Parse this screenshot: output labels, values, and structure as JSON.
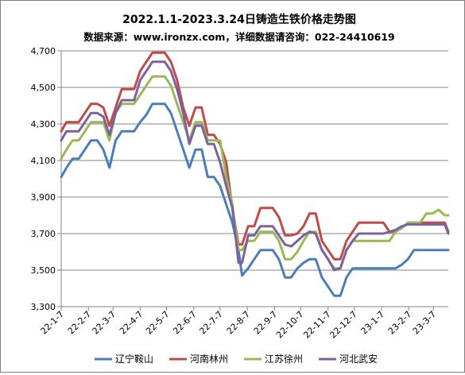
{
  "chart_data": {
    "type": "line",
    "title": "2022.1.1-2023.3.24日铸造生铁价格走势图",
    "subtitle": "数据来源：www.ironzx.com，详细数据请咨询：022-24410619",
    "xlabel": "",
    "ylabel": "",
    "ylim": [
      3300,
      4700
    ],
    "yticks": [
      3300,
      3500,
      3700,
      3900,
      4100,
      4300,
      4500,
      4700
    ],
    "ytick_labels": [
      "3,300",
      "3,500",
      "3,700",
      "3,900",
      "4,100",
      "4,300",
      "4,500",
      "4,700"
    ],
    "xlim": [
      "2022-01-07",
      "2023-03-24"
    ],
    "xtick_dates": [
      "2022-01-07",
      "2022-02-07",
      "2022-03-07",
      "2022-04-07",
      "2022-05-07",
      "2022-06-07",
      "2022-07-07",
      "2022-08-07",
      "2022-09-07",
      "2022-10-07",
      "2022-11-07",
      "2022-12-07",
      "2023-01-07",
      "2023-02-07",
      "2023-03-07"
    ],
    "xtick_labels": [
      "22-1-7",
      "22-2-7",
      "22-3-7",
      "22-4-7",
      "22-5-7",
      "22-6-7",
      "22-7-7",
      "22-8-7",
      "22-9-7",
      "22-10-7",
      "22-11-7",
      "22-12-7",
      "23-1-7",
      "23-2-7",
      "23-3-7"
    ],
    "grid": true,
    "legend_position": "bottom",
    "series": [
      {
        "name": "辽宁鞍山",
        "color": "#4a7ebb",
        "points": [
          [
            "2022-01-07",
            4010
          ],
          [
            "2022-01-13",
            4060
          ],
          [
            "2022-01-20",
            4110
          ],
          [
            "2022-01-27",
            4110
          ],
          [
            "2022-02-03",
            4160
          ],
          [
            "2022-02-10",
            4210
          ],
          [
            "2022-02-17",
            4210
          ],
          [
            "2022-02-24",
            4160
          ],
          [
            "2022-03-03",
            4060
          ],
          [
            "2022-03-10",
            4210
          ],
          [
            "2022-03-17",
            4260
          ],
          [
            "2022-03-24",
            4260
          ],
          [
            "2022-03-31",
            4260
          ],
          [
            "2022-04-07",
            4310
          ],
          [
            "2022-04-14",
            4350
          ],
          [
            "2022-04-21",
            4410
          ],
          [
            "2022-04-28",
            4410
          ],
          [
            "2022-05-05",
            4410
          ],
          [
            "2022-05-12",
            4360
          ],
          [
            "2022-05-19",
            4260
          ],
          [
            "2022-05-26",
            4160
          ],
          [
            "2022-06-02",
            4060
          ],
          [
            "2022-06-09",
            4160
          ],
          [
            "2022-06-16",
            4160
          ],
          [
            "2022-06-23",
            4010
          ],
          [
            "2022-06-30",
            4010
          ],
          [
            "2022-07-07",
            3960
          ],
          [
            "2022-07-14",
            3860
          ],
          [
            "2022-07-21",
            3760
          ],
          [
            "2022-07-28",
            3610
          ],
          [
            "2022-08-01",
            3470
          ],
          [
            "2022-08-08",
            3510
          ],
          [
            "2022-08-15",
            3560
          ],
          [
            "2022-08-22",
            3610
          ],
          [
            "2022-08-29",
            3610
          ],
          [
            "2022-09-05",
            3610
          ],
          [
            "2022-09-12",
            3560
          ],
          [
            "2022-09-19",
            3460
          ],
          [
            "2022-09-26",
            3460
          ],
          [
            "2022-10-03",
            3510
          ],
          [
            "2022-10-10",
            3540
          ],
          [
            "2022-10-17",
            3560
          ],
          [
            "2022-10-24",
            3560
          ],
          [
            "2022-10-31",
            3460
          ],
          [
            "2022-11-07",
            3410
          ],
          [
            "2022-11-14",
            3360
          ],
          [
            "2022-11-21",
            3360
          ],
          [
            "2022-11-28",
            3460
          ],
          [
            "2022-12-05",
            3510
          ],
          [
            "2022-12-12",
            3510
          ],
          [
            "2022-12-19",
            3510
          ],
          [
            "2022-12-26",
            3510
          ],
          [
            "2023-01-02",
            3510
          ],
          [
            "2023-01-09",
            3510
          ],
          [
            "2023-01-16",
            3510
          ],
          [
            "2023-01-23",
            3510
          ],
          [
            "2023-01-30",
            3530
          ],
          [
            "2023-02-06",
            3560
          ],
          [
            "2023-02-13",
            3610
          ],
          [
            "2023-02-20",
            3610
          ],
          [
            "2023-02-27",
            3610
          ],
          [
            "2023-03-06",
            3610
          ],
          [
            "2023-03-13",
            3610
          ],
          [
            "2023-03-20",
            3610
          ],
          [
            "2023-03-24",
            3610
          ]
        ]
      },
      {
        "name": "河南林州",
        "color": "#be4b48",
        "points": [
          [
            "2022-01-07",
            4260
          ],
          [
            "2022-01-13",
            4310
          ],
          [
            "2022-01-20",
            4310
          ],
          [
            "2022-01-27",
            4310
          ],
          [
            "2022-02-03",
            4360
          ],
          [
            "2022-02-10",
            4410
          ],
          [
            "2022-02-17",
            4410
          ],
          [
            "2022-02-24",
            4390
          ],
          [
            "2022-03-03",
            4290
          ],
          [
            "2022-03-10",
            4390
          ],
          [
            "2022-03-17",
            4490
          ],
          [
            "2022-03-24",
            4490
          ],
          [
            "2022-03-31",
            4490
          ],
          [
            "2022-04-07",
            4590
          ],
          [
            "2022-04-14",
            4640
          ],
          [
            "2022-04-21",
            4690
          ],
          [
            "2022-04-28",
            4690
          ],
          [
            "2022-05-05",
            4690
          ],
          [
            "2022-05-12",
            4640
          ],
          [
            "2022-05-19",
            4540
          ],
          [
            "2022-05-26",
            4390
          ],
          [
            "2022-06-02",
            4290
          ],
          [
            "2022-06-09",
            4390
          ],
          [
            "2022-06-16",
            4390
          ],
          [
            "2022-06-23",
            4240
          ],
          [
            "2022-06-30",
            4240
          ],
          [
            "2022-07-07",
            4190
          ],
          [
            "2022-07-14",
            4090
          ],
          [
            "2022-07-21",
            3840
          ],
          [
            "2022-07-28",
            3640
          ],
          [
            "2022-08-01",
            3640
          ],
          [
            "2022-08-08",
            3740
          ],
          [
            "2022-08-15",
            3740
          ],
          [
            "2022-08-22",
            3840
          ],
          [
            "2022-08-29",
            3840
          ],
          [
            "2022-09-05",
            3840
          ],
          [
            "2022-09-12",
            3790
          ],
          [
            "2022-09-19",
            3690
          ],
          [
            "2022-09-26",
            3690
          ],
          [
            "2022-10-03",
            3700
          ],
          [
            "2022-10-10",
            3740
          ],
          [
            "2022-10-17",
            3810
          ],
          [
            "2022-10-24",
            3810
          ],
          [
            "2022-10-31",
            3660
          ],
          [
            "2022-11-07",
            3610
          ],
          [
            "2022-11-14",
            3560
          ],
          [
            "2022-11-21",
            3560
          ],
          [
            "2022-11-28",
            3660
          ],
          [
            "2022-12-05",
            3710
          ],
          [
            "2022-12-12",
            3760
          ],
          [
            "2022-12-19",
            3760
          ],
          [
            "2022-12-26",
            3760
          ],
          [
            "2023-01-02",
            3760
          ],
          [
            "2023-01-09",
            3760
          ],
          [
            "2023-01-16",
            3710
          ],
          [
            "2023-01-23",
            3710
          ],
          [
            "2023-01-30",
            3730
          ],
          [
            "2023-02-06",
            3760
          ],
          [
            "2023-02-13",
            3760
          ],
          [
            "2023-02-20",
            3760
          ],
          [
            "2023-02-27",
            3760
          ],
          [
            "2023-03-06",
            3760
          ],
          [
            "2023-03-13",
            3760
          ],
          [
            "2023-03-20",
            3760
          ],
          [
            "2023-03-24",
            3710
          ]
        ]
      },
      {
        "name": "江苏徐州",
        "color": "#98b954",
        "points": [
          [
            "2022-01-07",
            4110
          ],
          [
            "2022-01-13",
            4160
          ],
          [
            "2022-01-20",
            4210
          ],
          [
            "2022-01-27",
            4210
          ],
          [
            "2022-02-03",
            4260
          ],
          [
            "2022-02-10",
            4310
          ],
          [
            "2022-02-17",
            4310
          ],
          [
            "2022-02-24",
            4310
          ],
          [
            "2022-03-03",
            4210
          ],
          [
            "2022-03-10",
            4360
          ],
          [
            "2022-03-17",
            4410
          ],
          [
            "2022-03-24",
            4410
          ],
          [
            "2022-03-31",
            4410
          ],
          [
            "2022-04-07",
            4460
          ],
          [
            "2022-04-14",
            4510
          ],
          [
            "2022-04-21",
            4560
          ],
          [
            "2022-04-28",
            4560
          ],
          [
            "2022-05-05",
            4560
          ],
          [
            "2022-05-12",
            4510
          ],
          [
            "2022-05-19",
            4410
          ],
          [
            "2022-05-26",
            4310
          ],
          [
            "2022-06-02",
            4210
          ],
          [
            "2022-06-09",
            4310
          ],
          [
            "2022-06-16",
            4310
          ],
          [
            "2022-06-23",
            4210
          ],
          [
            "2022-06-30",
            4210
          ],
          [
            "2022-07-07",
            4210
          ],
          [
            "2022-07-14",
            4010
          ],
          [
            "2022-07-21",
            3860
          ],
          [
            "2022-07-28",
            3610
          ],
          [
            "2022-08-01",
            3610
          ],
          [
            "2022-08-08",
            3660
          ],
          [
            "2022-08-15",
            3660
          ],
          [
            "2022-08-22",
            3710
          ],
          [
            "2022-08-29",
            3710
          ],
          [
            "2022-09-05",
            3710
          ],
          [
            "2022-09-12",
            3660
          ],
          [
            "2022-09-19",
            3560
          ],
          [
            "2022-09-26",
            3560
          ],
          [
            "2022-10-03",
            3600
          ],
          [
            "2022-10-10",
            3660
          ],
          [
            "2022-10-17",
            3710
          ],
          [
            "2022-10-24",
            3710
          ],
          [
            "2022-10-31",
            3610
          ],
          [
            "2022-11-07",
            3560
          ],
          [
            "2022-11-14",
            3510
          ],
          [
            "2022-11-21",
            3510
          ],
          [
            "2022-11-28",
            3610
          ],
          [
            "2022-12-05",
            3660
          ],
          [
            "2022-12-12",
            3660
          ],
          [
            "2022-12-19",
            3660
          ],
          [
            "2022-12-26",
            3660
          ],
          [
            "2023-01-02",
            3660
          ],
          [
            "2023-01-09",
            3660
          ],
          [
            "2023-01-16",
            3660
          ],
          [
            "2023-01-23",
            3710
          ],
          [
            "2023-01-30",
            3730
          ],
          [
            "2023-02-06",
            3760
          ],
          [
            "2023-02-13",
            3760
          ],
          [
            "2023-02-20",
            3760
          ],
          [
            "2023-02-27",
            3810
          ],
          [
            "2023-03-06",
            3810
          ],
          [
            "2023-03-13",
            3830
          ],
          [
            "2023-03-20",
            3800
          ],
          [
            "2023-03-24",
            3800
          ]
        ]
      },
      {
        "name": "河北武安",
        "color": "#7d60a0",
        "points": [
          [
            "2022-01-07",
            4210
          ],
          [
            "2022-01-13",
            4260
          ],
          [
            "2022-01-20",
            4260
          ],
          [
            "2022-01-27",
            4260
          ],
          [
            "2022-02-03",
            4310
          ],
          [
            "2022-02-10",
            4360
          ],
          [
            "2022-02-17",
            4360
          ],
          [
            "2022-02-24",
            4340
          ],
          [
            "2022-03-03",
            4240
          ],
          [
            "2022-03-10",
            4360
          ],
          [
            "2022-03-17",
            4430
          ],
          [
            "2022-03-24",
            4430
          ],
          [
            "2022-03-31",
            4430
          ],
          [
            "2022-04-07",
            4540
          ],
          [
            "2022-04-14",
            4590
          ],
          [
            "2022-04-21",
            4640
          ],
          [
            "2022-04-28",
            4640
          ],
          [
            "2022-05-05",
            4640
          ],
          [
            "2022-05-12",
            4590
          ],
          [
            "2022-05-19",
            4490
          ],
          [
            "2022-05-26",
            4360
          ],
          [
            "2022-06-02",
            4190
          ],
          [
            "2022-06-09",
            4290
          ],
          [
            "2022-06-16",
            4290
          ],
          [
            "2022-06-23",
            4190
          ],
          [
            "2022-06-30",
            4190
          ],
          [
            "2022-07-07",
            4090
          ],
          [
            "2022-07-14",
            3960
          ],
          [
            "2022-07-21",
            3840
          ],
          [
            "2022-07-28",
            3540
          ],
          [
            "2022-08-01",
            3540
          ],
          [
            "2022-08-08",
            3690
          ],
          [
            "2022-08-15",
            3690
          ],
          [
            "2022-08-22",
            3740
          ],
          [
            "2022-08-29",
            3740
          ],
          [
            "2022-09-05",
            3740
          ],
          [
            "2022-09-12",
            3690
          ],
          [
            "2022-09-19",
            3640
          ],
          [
            "2022-09-26",
            3630
          ],
          [
            "2022-10-03",
            3660
          ],
          [
            "2022-10-10",
            3690
          ],
          [
            "2022-10-17",
            3710
          ],
          [
            "2022-10-24",
            3700
          ],
          [
            "2022-10-31",
            3610
          ],
          [
            "2022-11-07",
            3560
          ],
          [
            "2022-11-14",
            3500
          ],
          [
            "2022-11-21",
            3510
          ],
          [
            "2022-11-28",
            3610
          ],
          [
            "2022-12-05",
            3660
          ],
          [
            "2022-12-12",
            3700
          ],
          [
            "2022-12-19",
            3700
          ],
          [
            "2022-12-26",
            3700
          ],
          [
            "2023-01-02",
            3700
          ],
          [
            "2023-01-09",
            3700
          ],
          [
            "2023-01-16",
            3710
          ],
          [
            "2023-01-23",
            3720
          ],
          [
            "2023-01-30",
            3740
          ],
          [
            "2023-02-06",
            3750
          ],
          [
            "2023-02-13",
            3750
          ],
          [
            "2023-02-20",
            3750
          ],
          [
            "2023-02-27",
            3750
          ],
          [
            "2023-03-06",
            3750
          ],
          [
            "2023-03-13",
            3750
          ],
          [
            "2023-03-20",
            3750
          ],
          [
            "2023-03-24",
            3700
          ]
        ]
      }
    ]
  }
}
